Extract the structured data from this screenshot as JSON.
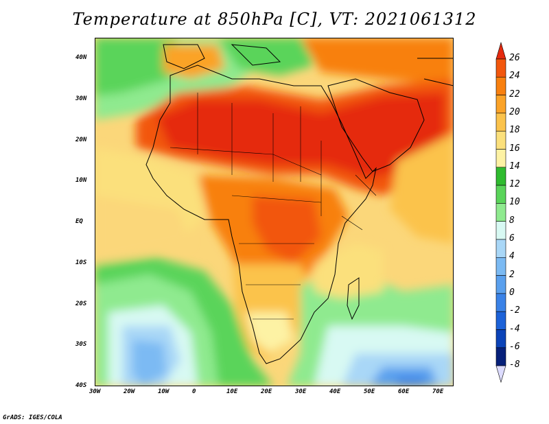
{
  "title": "Temperature at 850hPa [C], VT: 2021061312",
  "footer": "GrADS: IGES/COLA",
  "map": {
    "lon_labels": [
      "30W",
      "20W",
      "10W",
      "0",
      "10E",
      "20E",
      "30E",
      "40E",
      "50E",
      "60E",
      "70E"
    ],
    "lat_labels": [
      "40N",
      "30N",
      "20N",
      "10N",
      "EQ",
      "10S",
      "20S",
      "30S",
      "40S"
    ],
    "extent": {
      "lon_min": -30,
      "lon_max": 75,
      "lat_min": -40,
      "lat_max": 45
    }
  },
  "colorbar": {
    "levels": [
      "26",
      "24",
      "22",
      "20",
      "18",
      "16",
      "14",
      "12",
      "10",
      "8",
      "6",
      "4",
      "2",
      "0",
      "-2",
      "-4",
      "-6",
      "-8"
    ],
    "colors": [
      "#e52a0f",
      "#f2570d",
      "#f8800f",
      "#fba328",
      "#fbc34c",
      "#fbe07c",
      "#fdf2a4",
      "#2fbb2f",
      "#5ad45a",
      "#8fea8f",
      "#d8f9f3",
      "#a9d7f7",
      "#7bbaf3",
      "#5aa0ee",
      "#3a82e7",
      "#1c62d8",
      "#0b43b8",
      "#06207a",
      "#dddcff"
    ]
  }
}
